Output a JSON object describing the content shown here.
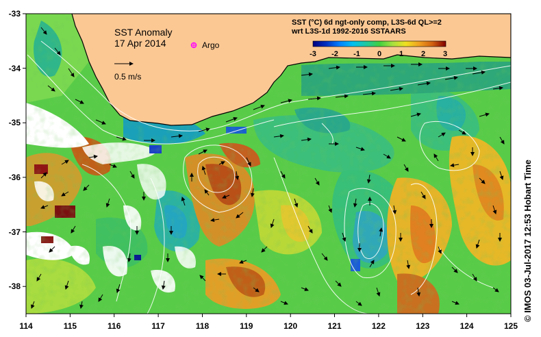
{
  "map": {
    "title": "SST Anomaly",
    "date": "17 Apr 2014",
    "argo_label": "Argo",
    "scale_label": "0.5 m/s",
    "product_line1": "SST (°C) 6d ngt-only comp, L3S-6d QL>=2",
    "product_line2": "wrt L3S-1d 1992-2016 SSTAARS",
    "credit": "© IMOS 03-Jul-2017 12:53 Hobart Time",
    "x_ticks": [
      "114",
      "115",
      "116",
      "117",
      "118",
      "119",
      "120",
      "121",
      "122",
      "123",
      "124",
      "125"
    ],
    "y_ticks": [
      "-33",
      "-34",
      "-35",
      "-36",
      "-37",
      "-38"
    ],
    "colorbar_ticks": [
      "-3",
      "-2",
      "-1",
      "0",
      "1",
      "2",
      "3"
    ],
    "colors": {
      "land": "#fbc894",
      "coast": "#000000",
      "argo_marker": "#ff00ff",
      "colorbar": [
        "#00007f",
        "#0050d0",
        "#00b0ff",
        "#20d0a0",
        "#40d040",
        "#a0e040",
        "#f0e020",
        "#f0a020",
        "#d06010",
        "#a02010",
        "#800000"
      ]
    },
    "icons": [
      "argo-marker-icon",
      "velocity-scale-arrow-icon"
    ]
  }
}
